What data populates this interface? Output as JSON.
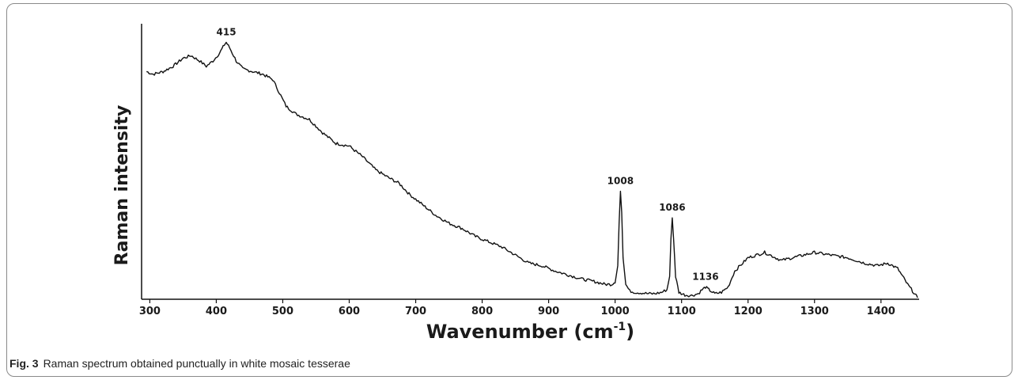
{
  "chart_data": {
    "type": "line",
    "xlabel": "Wavenumber (cm",
    "xlabel_sup": "-1",
    "xlabel_close": ")",
    "ylabel": "Raman intensity",
    "xlim": [
      290,
      1455
    ],
    "ylim": [
      0,
      100
    ],
    "x_ticks": [
      300,
      400,
      500,
      600,
      700,
      800,
      900,
      1000,
      1100,
      1200,
      1300,
      1400
    ],
    "grid": false,
    "y_tick_labels": false,
    "series": [
      {
        "x": [
          295,
          305,
          320,
          335,
          350,
          362,
          375,
          385,
          395,
          405,
          412,
          415,
          420,
          430,
          440,
          455,
          470,
          485,
          495,
          505,
          520,
          540,
          560,
          580,
          600,
          620,
          640,
          660,
          675,
          690,
          710,
          730,
          750,
          770,
          790,
          810,
          830,
          850,
          870,
          890,
          910,
          930,
          950,
          970,
          985,
          995,
          1000,
          1004,
          1006,
          1008,
          1010,
          1012,
          1016,
          1022,
          1030,
          1040,
          1050,
          1060,
          1070,
          1078,
          1082,
          1084,
          1086,
          1088,
          1091,
          1096,
          1105,
          1115,
          1125,
          1131,
          1136,
          1141,
          1150,
          1160,
          1170,
          1180,
          1200,
          1225,
          1250,
          1275,
          1300,
          1325,
          1350,
          1375,
          1395,
          1410,
          1425,
          1440,
          1455
        ],
        "y": [
          85,
          84,
          85,
          87,
          90,
          91,
          89,
          87,
          89,
          92,
          95,
          96,
          94,
          89,
          86,
          85,
          84,
          82,
          77,
          72,
          69,
          67,
          62,
          58,
          57,
          53,
          48,
          45,
          43,
          39,
          35,
          31,
          28,
          26,
          23,
          21,
          19,
          16,
          13,
          12,
          10,
          8.5,
          7,
          6,
          5,
          5,
          6,
          12,
          28,
          40,
          32,
          15,
          5,
          2.5,
          2,
          1.8,
          1.5,
          1.5,
          2,
          3,
          8,
          22,
          30,
          22,
          8,
          2,
          1,
          0.8,
          1.5,
          3,
          4,
          3,
          1.5,
          2,
          4,
          10,
          15,
          17,
          14,
          15.5,
          17,
          16,
          15,
          13,
          12,
          13,
          11,
          5,
          0
        ]
      }
    ],
    "annotations": [
      {
        "x": 415,
        "y": 96,
        "text": "415"
      },
      {
        "x": 1008,
        "y": 40,
        "text": "1008"
      },
      {
        "x": 1086,
        "y": 30,
        "text": "1086"
      },
      {
        "x": 1136,
        "y": 4,
        "text": "1136"
      }
    ]
  },
  "caption": {
    "label": "Fig. 3",
    "text": "Raman spectrum obtained punctually in white mosaic tesserae"
  }
}
